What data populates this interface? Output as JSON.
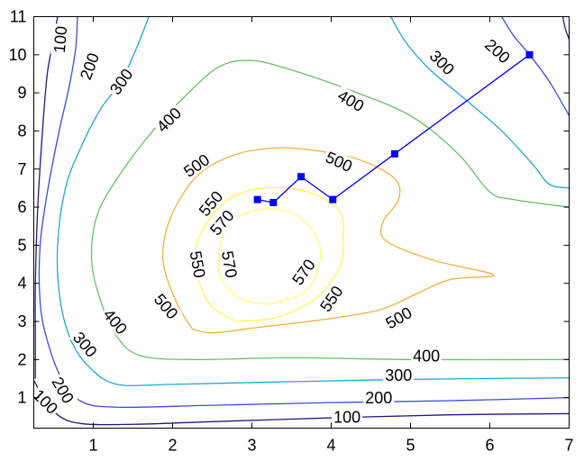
{
  "chart_data": {
    "type": "contour",
    "title": "",
    "xlabel": "",
    "ylabel": "",
    "xlim": [
      0.25,
      7
    ],
    "ylim": [
      0.2,
      11
    ],
    "grid": false,
    "legend": "none",
    "x_ticks": [
      1,
      2,
      3,
      4,
      5,
      6,
      7
    ],
    "y_ticks": [
      1,
      2,
      3,
      4,
      5,
      6,
      7,
      8,
      9,
      10,
      11
    ],
    "contours": [
      {
        "level": "100",
        "color": "#26197a",
        "lines": [
          [
            [
              0.55,
              11.0
            ],
            [
              0.5,
              10.4
            ],
            [
              0.42,
              9.5
            ],
            [
              0.36,
              8.0
            ],
            [
              0.3,
              6.0
            ],
            [
              0.27,
              4.0
            ],
            [
              0.27,
              2.5
            ],
            [
              0.27,
              1.5
            ]
          ],
          [
            [
              0.25,
              1.45
            ],
            [
              0.35,
              1.1
            ],
            [
              0.55,
              0.55
            ],
            [
              0.85,
              0.32
            ],
            [
              1.5,
              0.3
            ],
            [
              2.5,
              0.37
            ],
            [
              4.0,
              0.47
            ],
            [
              5.5,
              0.55
            ],
            [
              7.0,
              0.58
            ]
          ],
          [
            [
              6.92,
              11.0
            ],
            [
              6.95,
              10.7
            ],
            [
              7.0,
              10.4
            ]
          ]
        ],
        "labels": [
          {
            "text": "100",
            "x": 0.58,
            "y": 10.4,
            "angle": -85
          },
          {
            "text": "100",
            "x": 0.4,
            "y": 0.9,
            "angle": 45
          },
          {
            "text": "100",
            "x": 4.2,
            "y": 0.5,
            "angle": 0
          }
        ]
      },
      {
        "level": "200",
        "color": "#3a4ed8",
        "lines": [
          [
            [
              0.8,
              11.0
            ],
            [
              0.78,
              10.2
            ],
            [
              0.7,
              9.2
            ],
            [
              0.57,
              8.0
            ],
            [
              0.43,
              6.5
            ],
            [
              0.33,
              5.0
            ],
            [
              0.33,
              3.5
            ],
            [
              0.42,
              2.5
            ],
            [
              0.6,
              1.5
            ],
            [
              0.85,
              0.9
            ],
            [
              1.3,
              0.75
            ],
            [
              2.5,
              0.8
            ],
            [
              4.0,
              0.87
            ],
            [
              5.5,
              0.92
            ],
            [
              7.0,
              1.0
            ]
          ],
          [
            [
              6.15,
              11.0
            ],
            [
              6.3,
              10.5
            ],
            [
              6.5,
              10.0
            ],
            [
              6.75,
              9.3
            ],
            [
              7.0,
              8.4
            ]
          ]
        ],
        "labels": [
          {
            "text": "200",
            "x": 0.95,
            "y": 9.7,
            "angle": -70
          },
          {
            "text": "200",
            "x": 0.62,
            "y": 1.2,
            "angle": 60
          },
          {
            "text": "200",
            "x": 4.6,
            "y": 1.0,
            "angle": 0
          },
          {
            "text": "200",
            "x": 6.1,
            "y": 10.1,
            "angle": 42
          }
        ]
      },
      {
        "level": "300",
        "color": "#23a7cf",
        "lines": [
          [
            [
              1.7,
              11.0
            ],
            [
              1.55,
              10.2
            ],
            [
              1.35,
              9.3
            ],
            [
              1.1,
              8.6
            ],
            [
              0.85,
              7.6
            ],
            [
              0.65,
              6.5
            ],
            [
              0.55,
              5.0
            ],
            [
              0.58,
              3.6
            ],
            [
              0.72,
              2.5
            ],
            [
              0.95,
              1.8
            ],
            [
              1.3,
              1.35
            ],
            [
              2.0,
              1.35
            ],
            [
              3.5,
              1.42
            ],
            [
              5.0,
              1.48
            ],
            [
              7.0,
              1.52
            ]
          ],
          [
            [
              4.75,
              11.0
            ],
            [
              4.95,
              10.3
            ],
            [
              5.25,
              9.6
            ],
            [
              5.65,
              8.9
            ],
            [
              6.15,
              8.0
            ],
            [
              6.55,
              7.1
            ],
            [
              6.75,
              6.6
            ],
            [
              7.0,
              6.5
            ]
          ]
        ],
        "labels": [
          {
            "text": "300",
            "x": 1.35,
            "y": 9.3,
            "angle": -55
          },
          {
            "text": "300",
            "x": 0.9,
            "y": 2.4,
            "angle": 50
          },
          {
            "text": "300",
            "x": 4.85,
            "y": 1.6,
            "angle": 0
          },
          {
            "text": "300",
            "x": 5.4,
            "y": 9.8,
            "angle": 45
          }
        ]
      },
      {
        "level": "400",
        "color": "#6abf6a",
        "lines": [
          [
            [
              7.0,
              2.0
            ],
            [
              5.0,
              2.0
            ],
            [
              3.5,
              2.05
            ],
            [
              2.3,
              2.0
            ],
            [
              1.6,
              2.1
            ],
            [
              1.3,
              2.6
            ],
            [
              1.1,
              3.5
            ],
            [
              0.98,
              4.6
            ],
            [
              1.05,
              5.8
            ],
            [
              1.35,
              6.9
            ],
            [
              1.75,
              8.0
            ],
            [
              2.2,
              9.0
            ],
            [
              2.6,
              9.7
            ],
            [
              3.0,
              9.85
            ],
            [
              3.5,
              9.6
            ],
            [
              4.2,
              9.1
            ],
            [
              5.0,
              8.4
            ],
            [
              5.6,
              7.4
            ],
            [
              6.0,
              6.4
            ],
            [
              6.3,
              6.2
            ],
            [
              7.0,
              6.0
            ]
          ]
        ],
        "labels": [
          {
            "text": "400",
            "x": 1.95,
            "y": 8.3,
            "angle": -45
          },
          {
            "text": "400",
            "x": 1.28,
            "y": 3.0,
            "angle": 50
          },
          {
            "text": "400",
            "x": 5.2,
            "y": 2.1,
            "angle": 0
          },
          {
            "text": "400",
            "x": 4.25,
            "y": 8.8,
            "angle": 30
          }
        ]
      },
      {
        "level": "500",
        "color": "#f0b040",
        "lines": [
          [
            [
              2.25,
              2.8
            ],
            [
              2.05,
              3.5
            ],
            [
              1.88,
              4.6
            ],
            [
              1.97,
              5.7
            ],
            [
              2.3,
              6.8
            ],
            [
              2.75,
              7.35
            ],
            [
              3.25,
              7.55
            ],
            [
              3.75,
              7.5
            ],
            [
              4.35,
              7.25
            ],
            [
              4.8,
              6.75
            ],
            [
              4.85,
              6.2
            ],
            [
              4.65,
              5.6
            ],
            [
              4.7,
              5.1
            ],
            [
              5.3,
              4.6
            ],
            [
              6.05,
              4.22
            ],
            [
              5.5,
              4.1
            ],
            [
              5.05,
              3.7
            ],
            [
              4.6,
              3.3
            ],
            [
              3.9,
              3.05
            ],
            [
              3.1,
              2.85
            ],
            [
              2.5,
              2.7
            ],
            [
              2.25,
              2.8
            ]
          ]
        ],
        "labels": [
          {
            "text": "500",
            "x": 2.3,
            "y": 7.1,
            "angle": -35
          },
          {
            "text": "500",
            "x": 1.92,
            "y": 3.4,
            "angle": 50
          },
          {
            "text": "500",
            "x": 4.1,
            "y": 7.2,
            "angle": 25
          },
          {
            "text": "500",
            "x": 4.85,
            "y": 3.1,
            "angle": -30
          }
        ]
      },
      {
        "level": "550",
        "color": "#fff25a",
        "lines": [
          [
            [
              2.8,
              3.0
            ],
            [
              2.45,
              3.5
            ],
            [
              2.28,
              4.6
            ],
            [
              2.38,
              5.4
            ],
            [
              2.7,
              6.2
            ],
            [
              3.15,
              6.5
            ],
            [
              3.7,
              6.4
            ],
            [
              4.1,
              5.9
            ],
            [
              4.15,
              5.1
            ],
            [
              4.1,
              4.4
            ],
            [
              3.8,
              3.6
            ],
            [
              3.3,
              3.1
            ],
            [
              2.8,
              3.0
            ]
          ]
        ],
        "labels": [
          {
            "text": "550",
            "x": 2.48,
            "y": 6.1,
            "angle": -50
          },
          {
            "text": "550",
            "x": 2.32,
            "y": 4.5,
            "angle": 80
          },
          {
            "text": "550",
            "x": 4.0,
            "y": 3.6,
            "angle": -55
          }
        ]
      },
      {
        "level": "570",
        "color": "#fffa7a",
        "lines": [
          [
            [
              3.2,
              3.45
            ],
            [
              2.85,
              3.6
            ],
            [
              2.6,
              4.2
            ],
            [
              2.6,
              5.0
            ],
            [
              2.75,
              5.65
            ],
            [
              3.15,
              5.95
            ],
            [
              3.55,
              5.8
            ],
            [
              3.82,
              5.2
            ],
            [
              3.85,
              4.5
            ],
            [
              3.65,
              3.75
            ],
            [
              3.2,
              3.45
            ]
          ]
        ],
        "labels": [
          {
            "text": "570",
            "x": 2.62,
            "y": 5.6,
            "angle": -50
          },
          {
            "text": "570",
            "x": 2.72,
            "y": 4.5,
            "angle": 80
          },
          {
            "text": "570",
            "x": 3.65,
            "y": 4.3,
            "angle": -55
          }
        ]
      }
    ],
    "path": {
      "color": "#0000ff",
      "x": [
        6.5,
        4.8,
        4.02,
        3.62,
        3.27,
        3.07
      ],
      "y": [
        10.0,
        7.4,
        6.2,
        6.8,
        6.12,
        6.2
      ]
    }
  }
}
